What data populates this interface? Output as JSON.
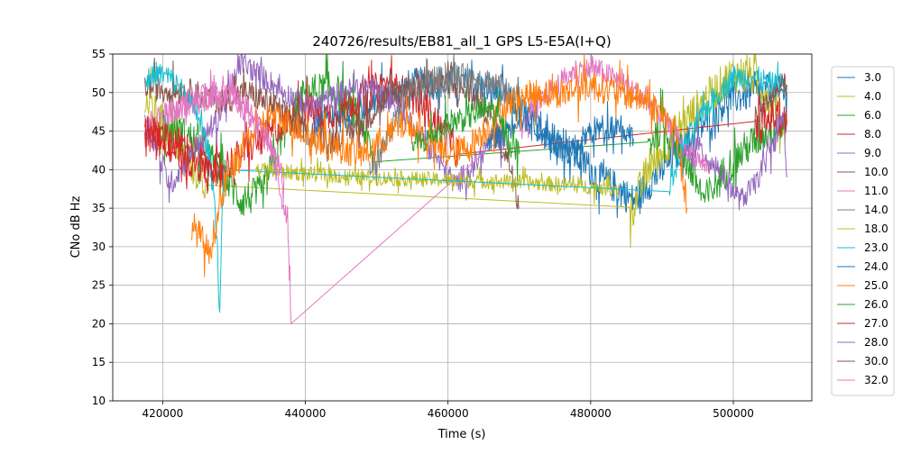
{
  "chart_data": {
    "type": "line",
    "title": "240726/results/EB81_all_1 GPS L5-E5A(I+Q)",
    "xlabel": "Time (s)",
    "ylabel": "CNo dB Hz",
    "xlim": [
      413000,
      511000
    ],
    "ylim": [
      10,
      55
    ],
    "x_ticks": [
      420000,
      440000,
      460000,
      480000,
      500000
    ],
    "x_tick_labels": [
      "420000",
      "440000",
      "460000",
      "480000",
      "500000"
    ],
    "y_ticks": [
      10,
      15,
      20,
      25,
      30,
      35,
      40,
      45,
      50,
      55
    ],
    "y_tick_labels": [
      "10",
      "15",
      "20",
      "25",
      "30",
      "35",
      "40",
      "45",
      "50",
      "55"
    ],
    "grid": true,
    "legend_position": "right-outside",
    "series": [
      {
        "name": "3.0",
        "color": "#1f77b4",
        "noise": 2.2,
        "x": [
          441000,
          445000,
          450000,
          455000,
          461000,
          467000,
          471000,
          475000,
          479000,
          481000,
          483000,
          486000,
          490000,
          493000,
          496000,
          499000,
          503000,
          507500
        ],
        "y": [
          46,
          47,
          49,
          51,
          51.5,
          50,
          47,
          44,
          41,
          39,
          38,
          36,
          40,
          43,
          46,
          49,
          50,
          50
        ]
      },
      {
        "name": "4.0",
        "color": "#bcbd22",
        "noise": 2.5,
        "x": [
          417500,
          420000,
          423000,
          426000,
          485500,
          488000,
          492000,
          496000,
          500000,
          503000,
          506000,
          507500
        ],
        "y": [
          49,
          46,
          42,
          38,
          34,
          40,
          45,
          49,
          52.5,
          52,
          48,
          45
        ]
      },
      {
        "name": "6.0",
        "color": "#2ca02c",
        "noise": 2.4,
        "x": [
          420000,
          424000,
          428000,
          431000,
          434000,
          437000,
          440000,
          444000,
          448000,
          449500,
          488000,
          490000,
          493000,
          496000,
          499000,
          502000,
          505000,
          507500
        ],
        "y": [
          46,
          44,
          40,
          36,
          37,
          45,
          50,
          50.5,
          46,
          41,
          43,
          46,
          42,
          36,
          40,
          43,
          45,
          46
        ]
      },
      {
        "name": "8.0",
        "color": "#d62728",
        "noise": 2.2,
        "x": [
          417500,
          421000,
          425000,
          428000,
          431000,
          434000,
          437000,
          440000,
          443000,
          447000,
          451000,
          454000,
          457000,
          460000,
          461500,
          503000,
          505500,
          507500
        ],
        "y": [
          45,
          44,
          42,
          40,
          42,
          44,
          46,
          48,
          47,
          49,
          51,
          50,
          48,
          44,
          42,
          45,
          47,
          46
        ]
      },
      {
        "name": "9.0",
        "color": "#9467bd",
        "noise": 1.6,
        "x": [
          417500,
          419000,
          421000,
          424000,
          428000,
          431000,
          434000,
          437000,
          441000,
          445000,
          449000,
          452000,
          455000,
          458000,
          461000,
          464000,
          466000,
          468000
        ],
        "y": [
          47,
          43,
          38,
          42,
          47,
          54,
          52,
          50,
          48,
          50,
          51,
          49,
          46,
          42,
          38,
          41,
          44,
          43
        ]
      },
      {
        "name": "10.0",
        "color": "#8c564b",
        "noise": 1.8,
        "x": [
          417500,
          420000,
          424000,
          428000,
          432000,
          436000,
          440000,
          444000,
          448000,
          452000,
          456000,
          460000,
          463000,
          466000,
          469000,
          470000
        ],
        "y": [
          51,
          50.5,
          50,
          49,
          50,
          48,
          45,
          44,
          46,
          50,
          51.5,
          51,
          50,
          47,
          40,
          35
        ]
      },
      {
        "name": "11.0",
        "color": "#e377c2",
        "noise": 1.5,
        "x": [
          417500,
          420000,
          423000,
          426000,
          430000,
          433000,
          435000,
          436500,
          437500,
          438000,
          470000,
          474000,
          478000,
          481000,
          485000,
          489000,
          493000,
          497000
        ],
        "y": [
          46,
          47,
          48,
          49,
          50,
          47,
          43,
          37,
          34,
          20,
          45,
          50,
          53,
          53,
          51,
          48,
          43,
          40
        ]
      },
      {
        "name": "14.0",
        "color": "#7f7f7f",
        "noise": 1.8,
        "x": [
          449000,
          451000,
          453000,
          455000,
          458000,
          461000,
          464000,
          467000,
          469500
        ],
        "y": [
          40,
          43,
          47,
          50,
          51.5,
          52,
          52,
          51,
          49
        ]
      },
      {
        "name": "18.0",
        "color": "#bcbd22",
        "noise": 1.0,
        "x": [
          433000,
          440000,
          447000,
          455000,
          462000,
          470000,
          477000,
          484000
        ],
        "y": [
          40,
          39.5,
          39,
          38.8,
          38.6,
          38.4,
          38,
          37.5
        ]
      },
      {
        "name": "23.0",
        "color": "#17becf",
        "noise": 1.6,
        "x": [
          417500,
          419000,
          421000,
          423000,
          425000,
          426500,
          427500,
          428000,
          428500,
          491000,
          493000,
          495000,
          497000,
          500000,
          503000,
          505500,
          507500
        ],
        "y": [
          51.5,
          52.5,
          52,
          50,
          47,
          42,
          34,
          21,
          40,
          38,
          43,
          46,
          49,
          52,
          52,
          51,
          51
        ]
      },
      {
        "name": "24.0",
        "color": "#1f77b4",
        "noise": 1.8,
        "x": [
          465500,
          468000,
          470000,
          472000,
          474000,
          477000,
          480000,
          484000,
          486000
        ],
        "y": [
          43,
          45,
          47,
          46,
          44,
          42,
          45,
          46,
          44
        ]
      },
      {
        "name": "25.0",
        "color": "#ff7f0e",
        "noise": 2.0,
        "x": [
          424000,
          425500,
          426500,
          427500,
          429000,
          432000,
          435000,
          438000,
          441000,
          444000,
          448000,
          451000,
          454000,
          457000,
          460000,
          463000,
          466000,
          469000,
          473000,
          476000,
          480000,
          484000,
          488000,
          492000,
          493500
        ],
        "y": [
          33,
          31,
          29,
          33,
          39,
          44,
          47,
          46,
          44,
          43,
          42,
          44,
          46,
          44,
          42,
          43,
          46,
          49,
          50,
          50,
          51,
          50,
          49,
          45,
          35
        ]
      },
      {
        "name": "26.0",
        "color": "#2ca02c",
        "noise": 1.8,
        "x": [
          455000,
          457000,
          460000,
          463000,
          466000,
          468000,
          470000
        ],
        "y": [
          43,
          44,
          46,
          47,
          48,
          45,
          42
        ]
      },
      {
        "name": "27.0",
        "color": "#d62728",
        "noise": 1.8,
        "x": [
          417500,
          419000,
          421000,
          423000,
          426000,
          428500
        ],
        "y": [
          45.5,
          45,
          43,
          41,
          40,
          39
        ]
      },
      {
        "name": "28.0",
        "color": "#9467bd",
        "noise": 1.5,
        "x": [
          493000,
          495000,
          498000,
          501000,
          503000,
          505000,
          507000,
          507500
        ],
        "y": [
          42,
          43,
          40,
          36,
          38,
          42,
          47,
          39
        ]
      },
      {
        "name": "30.0",
        "color": "#8c564b",
        "noise": 1.6,
        "x": [
          503000,
          505000,
          507000,
          507500
        ],
        "y": [
          46,
          49,
          51,
          51
        ]
      },
      {
        "name": "32.0",
        "color": "#e377c2",
        "noise": 1.6,
        "x": [
          420000,
          423000,
          426000,
          429000,
          432000,
          435000,
          437000
        ],
        "y": [
          47,
          48.5,
          50,
          49.5,
          47,
          43,
          39
        ]
      }
    ]
  }
}
